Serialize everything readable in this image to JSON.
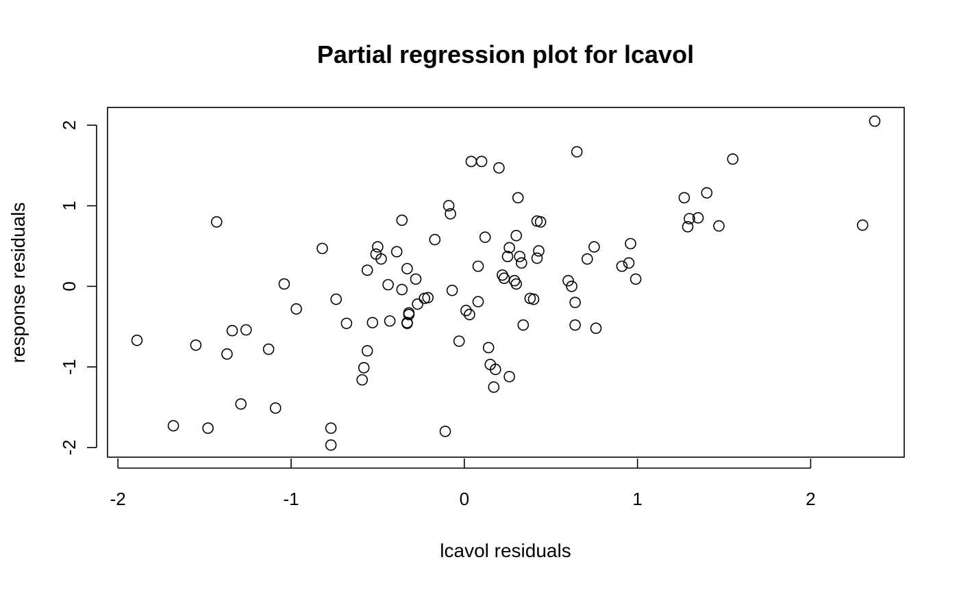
{
  "chart_data": {
    "type": "scatter",
    "title": "Partial regression plot for lcavol",
    "xlabel": "lcavol residuals",
    "ylabel": "response residuals",
    "xlim": [
      -2.06,
      2.54
    ],
    "ylim": [
      -2.12,
      2.22
    ],
    "xticks": [
      -2,
      -1,
      0,
      1,
      2
    ],
    "yticks": [
      -2,
      -1,
      0,
      1,
      2
    ],
    "grid": false,
    "marker": "open-circle",
    "points": [
      {
        "x": -1.89,
        "y": -0.67
      },
      {
        "x": -1.68,
        "y": -1.73
      },
      {
        "x": -1.55,
        "y": -0.73
      },
      {
        "x": -1.48,
        "y": -1.76
      },
      {
        "x": -1.43,
        "y": 0.8
      },
      {
        "x": -1.37,
        "y": -0.84
      },
      {
        "x": -1.34,
        "y": -0.55
      },
      {
        "x": -1.29,
        "y": -1.46
      },
      {
        "x": -1.26,
        "y": -0.54
      },
      {
        "x": -1.13,
        "y": -0.78
      },
      {
        "x": -1.09,
        "y": -1.51
      },
      {
        "x": -1.04,
        "y": 0.03
      },
      {
        "x": -0.97,
        "y": -0.28
      },
      {
        "x": -0.82,
        "y": 0.47
      },
      {
        "x": -0.77,
        "y": -1.76
      },
      {
        "x": -0.77,
        "y": -1.97
      },
      {
        "x": -0.74,
        "y": -0.16
      },
      {
        "x": -0.68,
        "y": -0.46
      },
      {
        "x": -0.59,
        "y": -1.16
      },
      {
        "x": -0.58,
        "y": -1.01
      },
      {
        "x": -0.56,
        "y": -0.8
      },
      {
        "x": -0.56,
        "y": 0.2
      },
      {
        "x": -0.53,
        "y": -0.45
      },
      {
        "x": -0.51,
        "y": 0.4
      },
      {
        "x": -0.5,
        "y": 0.49
      },
      {
        "x": -0.48,
        "y": 0.34
      },
      {
        "x": -0.44,
        "y": 0.02
      },
      {
        "x": -0.43,
        "y": -0.43
      },
      {
        "x": -0.39,
        "y": 0.43
      },
      {
        "x": -0.36,
        "y": 0.82
      },
      {
        "x": -0.36,
        "y": -0.04
      },
      {
        "x": -0.33,
        "y": 0.22
      },
      {
        "x": -0.33,
        "y": -0.45
      },
      {
        "x": -0.33,
        "y": -0.46
      },
      {
        "x": -0.32,
        "y": -0.33
      },
      {
        "x": -0.32,
        "y": -0.35
      },
      {
        "x": -0.28,
        "y": 0.09
      },
      {
        "x": -0.27,
        "y": -0.22
      },
      {
        "x": -0.23,
        "y": -0.15
      },
      {
        "x": -0.21,
        "y": -0.14
      },
      {
        "x": -0.17,
        "y": 0.58
      },
      {
        "x": -0.11,
        "y": -1.8
      },
      {
        "x": -0.09,
        "y": 1.0
      },
      {
        "x": -0.08,
        "y": 0.9
      },
      {
        "x": -0.07,
        "y": -0.05
      },
      {
        "x": -0.03,
        "y": -0.68
      },
      {
        "x": 0.01,
        "y": -0.3
      },
      {
        "x": 0.03,
        "y": -0.35
      },
      {
        "x": 0.04,
        "y": 1.55
      },
      {
        "x": 0.08,
        "y": 0.25
      },
      {
        "x": 0.08,
        "y": -0.19
      },
      {
        "x": 0.1,
        "y": 1.55
      },
      {
        "x": 0.12,
        "y": 0.61
      },
      {
        "x": 0.14,
        "y": -0.76
      },
      {
        "x": 0.15,
        "y": -0.97
      },
      {
        "x": 0.17,
        "y": -1.25
      },
      {
        "x": 0.18,
        "y": -1.03
      },
      {
        "x": 0.2,
        "y": 1.47
      },
      {
        "x": 0.22,
        "y": 0.14
      },
      {
        "x": 0.23,
        "y": 0.1
      },
      {
        "x": 0.25,
        "y": 0.37
      },
      {
        "x": 0.26,
        "y": 0.48
      },
      {
        "x": 0.26,
        "y": -1.12
      },
      {
        "x": 0.29,
        "y": 0.07
      },
      {
        "x": 0.3,
        "y": 0.63
      },
      {
        "x": 0.3,
        "y": 0.03
      },
      {
        "x": 0.31,
        "y": 1.1
      },
      {
        "x": 0.32,
        "y": 0.37
      },
      {
        "x": 0.33,
        "y": 0.29
      },
      {
        "x": 0.34,
        "y": -0.48
      },
      {
        "x": 0.38,
        "y": -0.15
      },
      {
        "x": 0.4,
        "y": -0.16
      },
      {
        "x": 0.42,
        "y": 0.81
      },
      {
        "x": 0.42,
        "y": 0.35
      },
      {
        "x": 0.43,
        "y": 0.44
      },
      {
        "x": 0.44,
        "y": 0.8
      },
      {
        "x": 0.6,
        "y": 0.07
      },
      {
        "x": 0.62,
        "y": 0.0
      },
      {
        "x": 0.64,
        "y": -0.2
      },
      {
        "x": 0.64,
        "y": -0.48
      },
      {
        "x": 0.65,
        "y": 1.67
      },
      {
        "x": 0.71,
        "y": 0.34
      },
      {
        "x": 0.75,
        "y": 0.49
      },
      {
        "x": 0.76,
        "y": -0.52
      },
      {
        "x": 0.91,
        "y": 0.25
      },
      {
        "x": 0.95,
        "y": 0.29
      },
      {
        "x": 0.96,
        "y": 0.53
      },
      {
        "x": 0.99,
        "y": 0.09
      },
      {
        "x": 1.27,
        "y": 1.1
      },
      {
        "x": 1.29,
        "y": 0.74
      },
      {
        "x": 1.3,
        "y": 0.84
      },
      {
        "x": 1.35,
        "y": 0.85
      },
      {
        "x": 1.4,
        "y": 1.16
      },
      {
        "x": 1.47,
        "y": 0.75
      },
      {
        "x": 1.55,
        "y": 1.58
      },
      {
        "x": 2.3,
        "y": 0.76
      },
      {
        "x": 2.37,
        "y": 2.05
      }
    ]
  }
}
